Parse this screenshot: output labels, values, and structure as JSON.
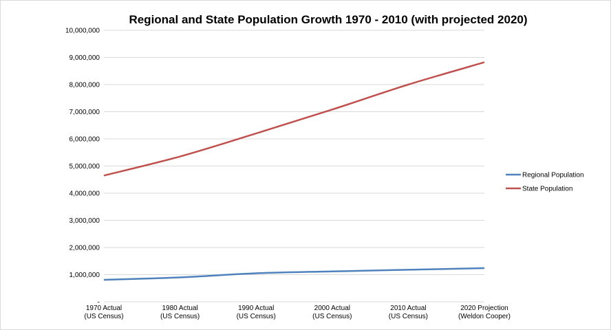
{
  "chart_data": {
    "type": "line",
    "title": "Regional and State Population Growth 1970 - 2010 (with projected 2020)",
    "xlabel": "",
    "ylabel": "",
    "categories": [
      [
        "1970 Actual",
        "(US Census)"
      ],
      [
        "1980 Actual",
        "(US Census)"
      ],
      [
        "1990 Actual",
        "(US Census)"
      ],
      [
        "2000 Actual",
        "(US Census)"
      ],
      [
        "2010 Actual",
        "(US Census)"
      ],
      [
        "2020 Projection",
        "(Weldon Cooper)"
      ]
    ],
    "yticks": [
      "-",
      "1,000,000",
      "2,000,000",
      "3,000,000",
      "4,000,000",
      "5,000,000",
      "6,000,000",
      "7,000,000",
      "8,000,000",
      "9,000,000",
      "10,000,000"
    ],
    "ylim": [
      0,
      10000000
    ],
    "grid": true,
    "legend_position": "right",
    "series": [
      {
        "name": "Regional Population",
        "color": "#4f81bd",
        "values": [
          810000,
          900000,
          1050000,
          1120000,
          1180000,
          1240000
        ]
      },
      {
        "name": "State Population",
        "color": "#c0504d",
        "values": [
          4650000,
          5350000,
          6200000,
          7080000,
          8000000,
          8820000
        ]
      }
    ]
  }
}
